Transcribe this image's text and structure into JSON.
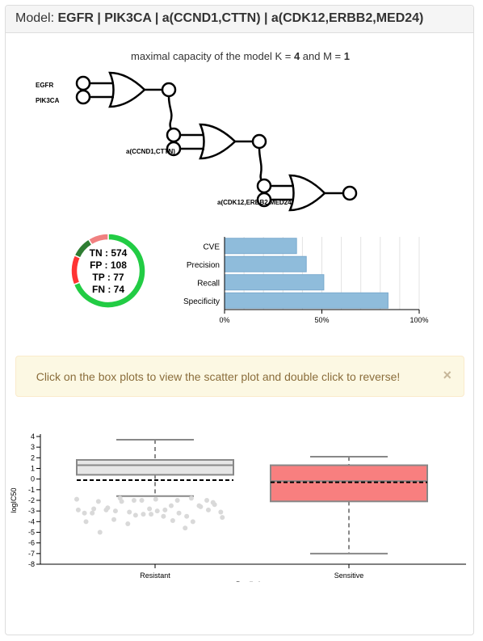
{
  "header": {
    "label": "Model:",
    "model": "EGFR | PIK3CA | a(CCND1,CTTN) | a(CDK12,ERBB2,MED24)"
  },
  "capacity": {
    "prefix": "maximal capacity of the model K = ",
    "k": "4",
    "middle": " and M = ",
    "m": "1"
  },
  "diagram": {
    "inputs": [
      "EGFR",
      "PIK3CA",
      "a(CCND1,CTTN)",
      "a(CDK12,ERBB2,MED24)"
    ],
    "gate_type": "OR"
  },
  "chart_data": [
    {
      "type": "pie",
      "slices": [
        {
          "name": "TN",
          "value": 574,
          "color": "#22cc44"
        },
        {
          "name": "FP",
          "value": 108,
          "color": "#ff3333"
        },
        {
          "name": "TP",
          "value": 77,
          "color": "#2e7d32"
        },
        {
          "name": "FN",
          "value": 74,
          "color": "#f08080"
        }
      ],
      "labels": [
        "TN : 574",
        "FP : 108",
        "TP : 77",
        "FN : 74"
      ]
    },
    {
      "type": "bar",
      "orientation": "horizontal",
      "categories": [
        "CVE",
        "Precision",
        "Recall",
        "Specificity"
      ],
      "values": [
        37,
        42,
        51,
        84
      ],
      "xlim": [
        0,
        100
      ],
      "xticks": [
        "0%",
        "50%",
        "100%"
      ],
      "grid": true,
      "color": "#8fbcdb"
    },
    {
      "type": "box",
      "xlabel": "Prediction",
      "ylabel": "logIC50",
      "ylim": [
        -8,
        4
      ],
      "yticks": [
        4,
        3,
        2,
        1,
        0,
        -1,
        -2,
        -3,
        -4,
        -5,
        -6,
        -7,
        -8
      ],
      "categories": [
        "Resistant",
        "Sensitive"
      ],
      "boxes": [
        {
          "name": "Resistant",
          "whisker_low": -1.6,
          "q1": 0.4,
          "median": 1.3,
          "q3": 1.8,
          "whisker_high": 3.7,
          "mean": -0.1,
          "color": "#e6e6e6"
        },
        {
          "name": "Sensitive",
          "whisker_low": -7.0,
          "q1": -2.1,
          "median": -0.2,
          "q3": 1.3,
          "whisker_high": 2.1,
          "mean": -0.3,
          "color": "#f87f7f"
        }
      ],
      "resistant_points": [
        -1.9,
        -2.0,
        -1.8,
        -2.1,
        -1.9,
        -2.2,
        -1.8,
        -2.0,
        -3.2,
        -2.0,
        -2.5,
        -2.9,
        -3.5,
        -3.1,
        -4.2,
        -4.6,
        -3.2,
        -2.8,
        -2.0,
        -3.8,
        -2.5,
        -2.9,
        -3.4,
        -4.0,
        -5.0,
        -3.0,
        -2.4,
        -2.1,
        -3.2,
        -4.0,
        -3.3,
        -2.6,
        -2.7,
        -2.9,
        -3.6,
        -3.1,
        -3.5,
        -2.8,
        -3.3,
        -2.9,
        -3.0,
        -3.9
      ]
    }
  ],
  "alert": {
    "text": "Click on the box plots to view the scatter plot and double click to reverse!",
    "close": "×"
  }
}
